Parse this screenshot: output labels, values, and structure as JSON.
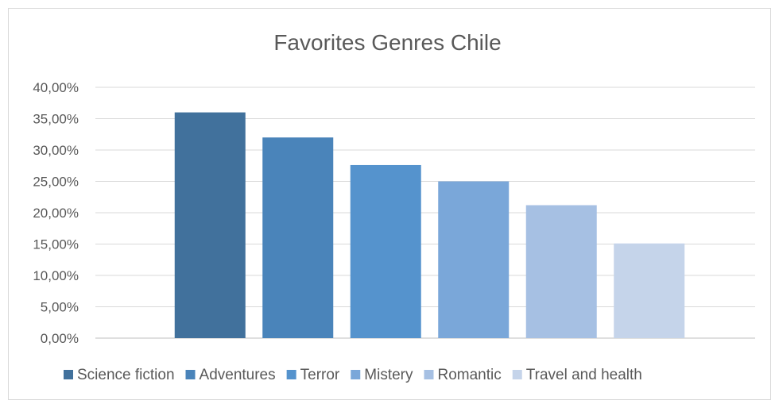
{
  "chart_data": {
    "type": "bar",
    "title": "Favorites Genres Chile",
    "xlabel": "",
    "ylabel": "",
    "categories": [
      ""
    ],
    "series": [
      {
        "name": "Science fiction",
        "values": [
          0.36
        ],
        "color": "#41719c"
      },
      {
        "name": "Adventures",
        "values": [
          0.32
        ],
        "color": "#4a84ba"
      },
      {
        "name": "Terror",
        "values": [
          0.276
        ],
        "color": "#5593cd"
      },
      {
        "name": "Mistery",
        "values": [
          0.25
        ],
        "color": "#7aa7d9"
      },
      {
        "name": "Romantic",
        "values": [
          0.212
        ],
        "color": "#a6c0e3"
      },
      {
        "name": "Travel and health",
        "values": [
          0.151
        ],
        "color": "#c5d4ea"
      }
    ],
    "ylim": [
      0,
      0.4
    ],
    "ytick_step": 0.05,
    "ytick_labels": [
      "0,00%",
      "5,00%",
      "10,00%",
      "15,00%",
      "20,00%",
      "25,00%",
      "30,00%",
      "35,00%",
      "40,00%"
    ],
    "grid": true,
    "legend": "bottom"
  }
}
